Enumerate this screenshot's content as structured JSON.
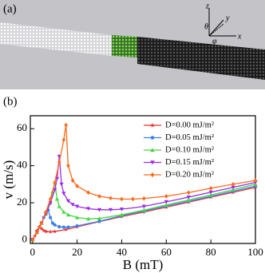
{
  "panels": {
    "a": "(a)",
    "b": "(b)"
  },
  "panel_a_axes": [
    "z",
    "y",
    "x",
    "θ",
    "φ"
  ],
  "chart_data": {
    "type": "line",
    "x_label": "B (mT)",
    "y_label": "v (m/s)",
    "xlim": [
      -1,
      100
    ],
    "ylim": [
      -2,
      67
    ],
    "xticks": [
      0,
      20,
      40,
      60,
      80,
      100
    ],
    "yticks": [
      0,
      20,
      40,
      60
    ],
    "legend": "upper right",
    "series": [
      {
        "name": "D=0.00 mJ/m²",
        "color": "#e8322b",
        "marker": "star",
        "x": [
          0,
          1,
          2,
          3,
          4,
          5,
          6,
          8,
          10,
          15,
          20,
          30,
          40,
          50,
          60,
          70,
          80,
          90,
          100
        ],
        "values": [
          0,
          2,
          5,
          7,
          6,
          5,
          4.5,
          4.3,
          4.5,
          5.5,
          7,
          9.8,
          12.5,
          15,
          17.6,
          20.3,
          23,
          25.6,
          28.3
        ]
      },
      {
        "name": "D=0.05 mJ/m²",
        "color": "#3a7ff0",
        "marker": "circle",
        "x": [
          0,
          2,
          4,
          5,
          6,
          7,
          8,
          9,
          10,
          12,
          14,
          16,
          20,
          30,
          40,
          50,
          60,
          70,
          80,
          90,
          100
        ],
        "values": [
          0,
          4,
          9,
          12,
          14,
          16,
          12,
          9,
          8,
          7,
          6.8,
          6.8,
          7.5,
          10,
          13,
          15.5,
          18.2,
          20.8,
          23.5,
          26.2,
          29
        ]
      },
      {
        "name": "D=0.10 mJ/m²",
        "color": "#44d83e",
        "marker": "triangle-up",
        "x": [
          0,
          2,
          4,
          6,
          8,
          9,
          10,
          11,
          12,
          14,
          16,
          20,
          25,
          30,
          40,
          50,
          60,
          70,
          80,
          90,
          100
        ],
        "values": [
          0,
          4,
          9,
          14,
          20,
          26,
          31,
          22,
          18,
          15,
          13.5,
          12,
          11.3,
          11.5,
          13.5,
          16,
          18.8,
          21.5,
          24.2,
          27,
          30
        ]
      },
      {
        "name": "D=0.15 mJ/m²",
        "color": "#9a2be8",
        "marker": "triangle-down",
        "x": [
          0,
          2,
          4,
          6,
          8,
          10,
          11,
          12,
          13,
          14,
          16,
          18,
          20,
          25,
          30,
          35,
          40,
          50,
          60,
          70,
          80,
          90,
          100
        ],
        "values": [
          0,
          4,
          9,
          14,
          20,
          27,
          33,
          45,
          30,
          25,
          21,
          19,
          18,
          16.8,
          16.2,
          16.2,
          16.5,
          18,
          20.5,
          23,
          25.7,
          28.3,
          31
        ]
      },
      {
        "name": "D=0.20 mJ/m²",
        "color": "#ff6a1a",
        "marker": "diamond",
        "x": [
          0,
          2,
          4,
          6,
          8,
          10,
          12,
          14,
          15,
          16,
          18,
          20,
          25,
          30,
          35,
          40,
          45,
          50,
          60,
          70,
          80,
          90,
          100
        ],
        "values": [
          0,
          4,
          9,
          15,
          22,
          31,
          42,
          54,
          62,
          40,
          32,
          29,
          25.5,
          23.5,
          22.5,
          22,
          22,
          22.3,
          23.5,
          25.5,
          27.8,
          30,
          32
        ]
      }
    ]
  }
}
